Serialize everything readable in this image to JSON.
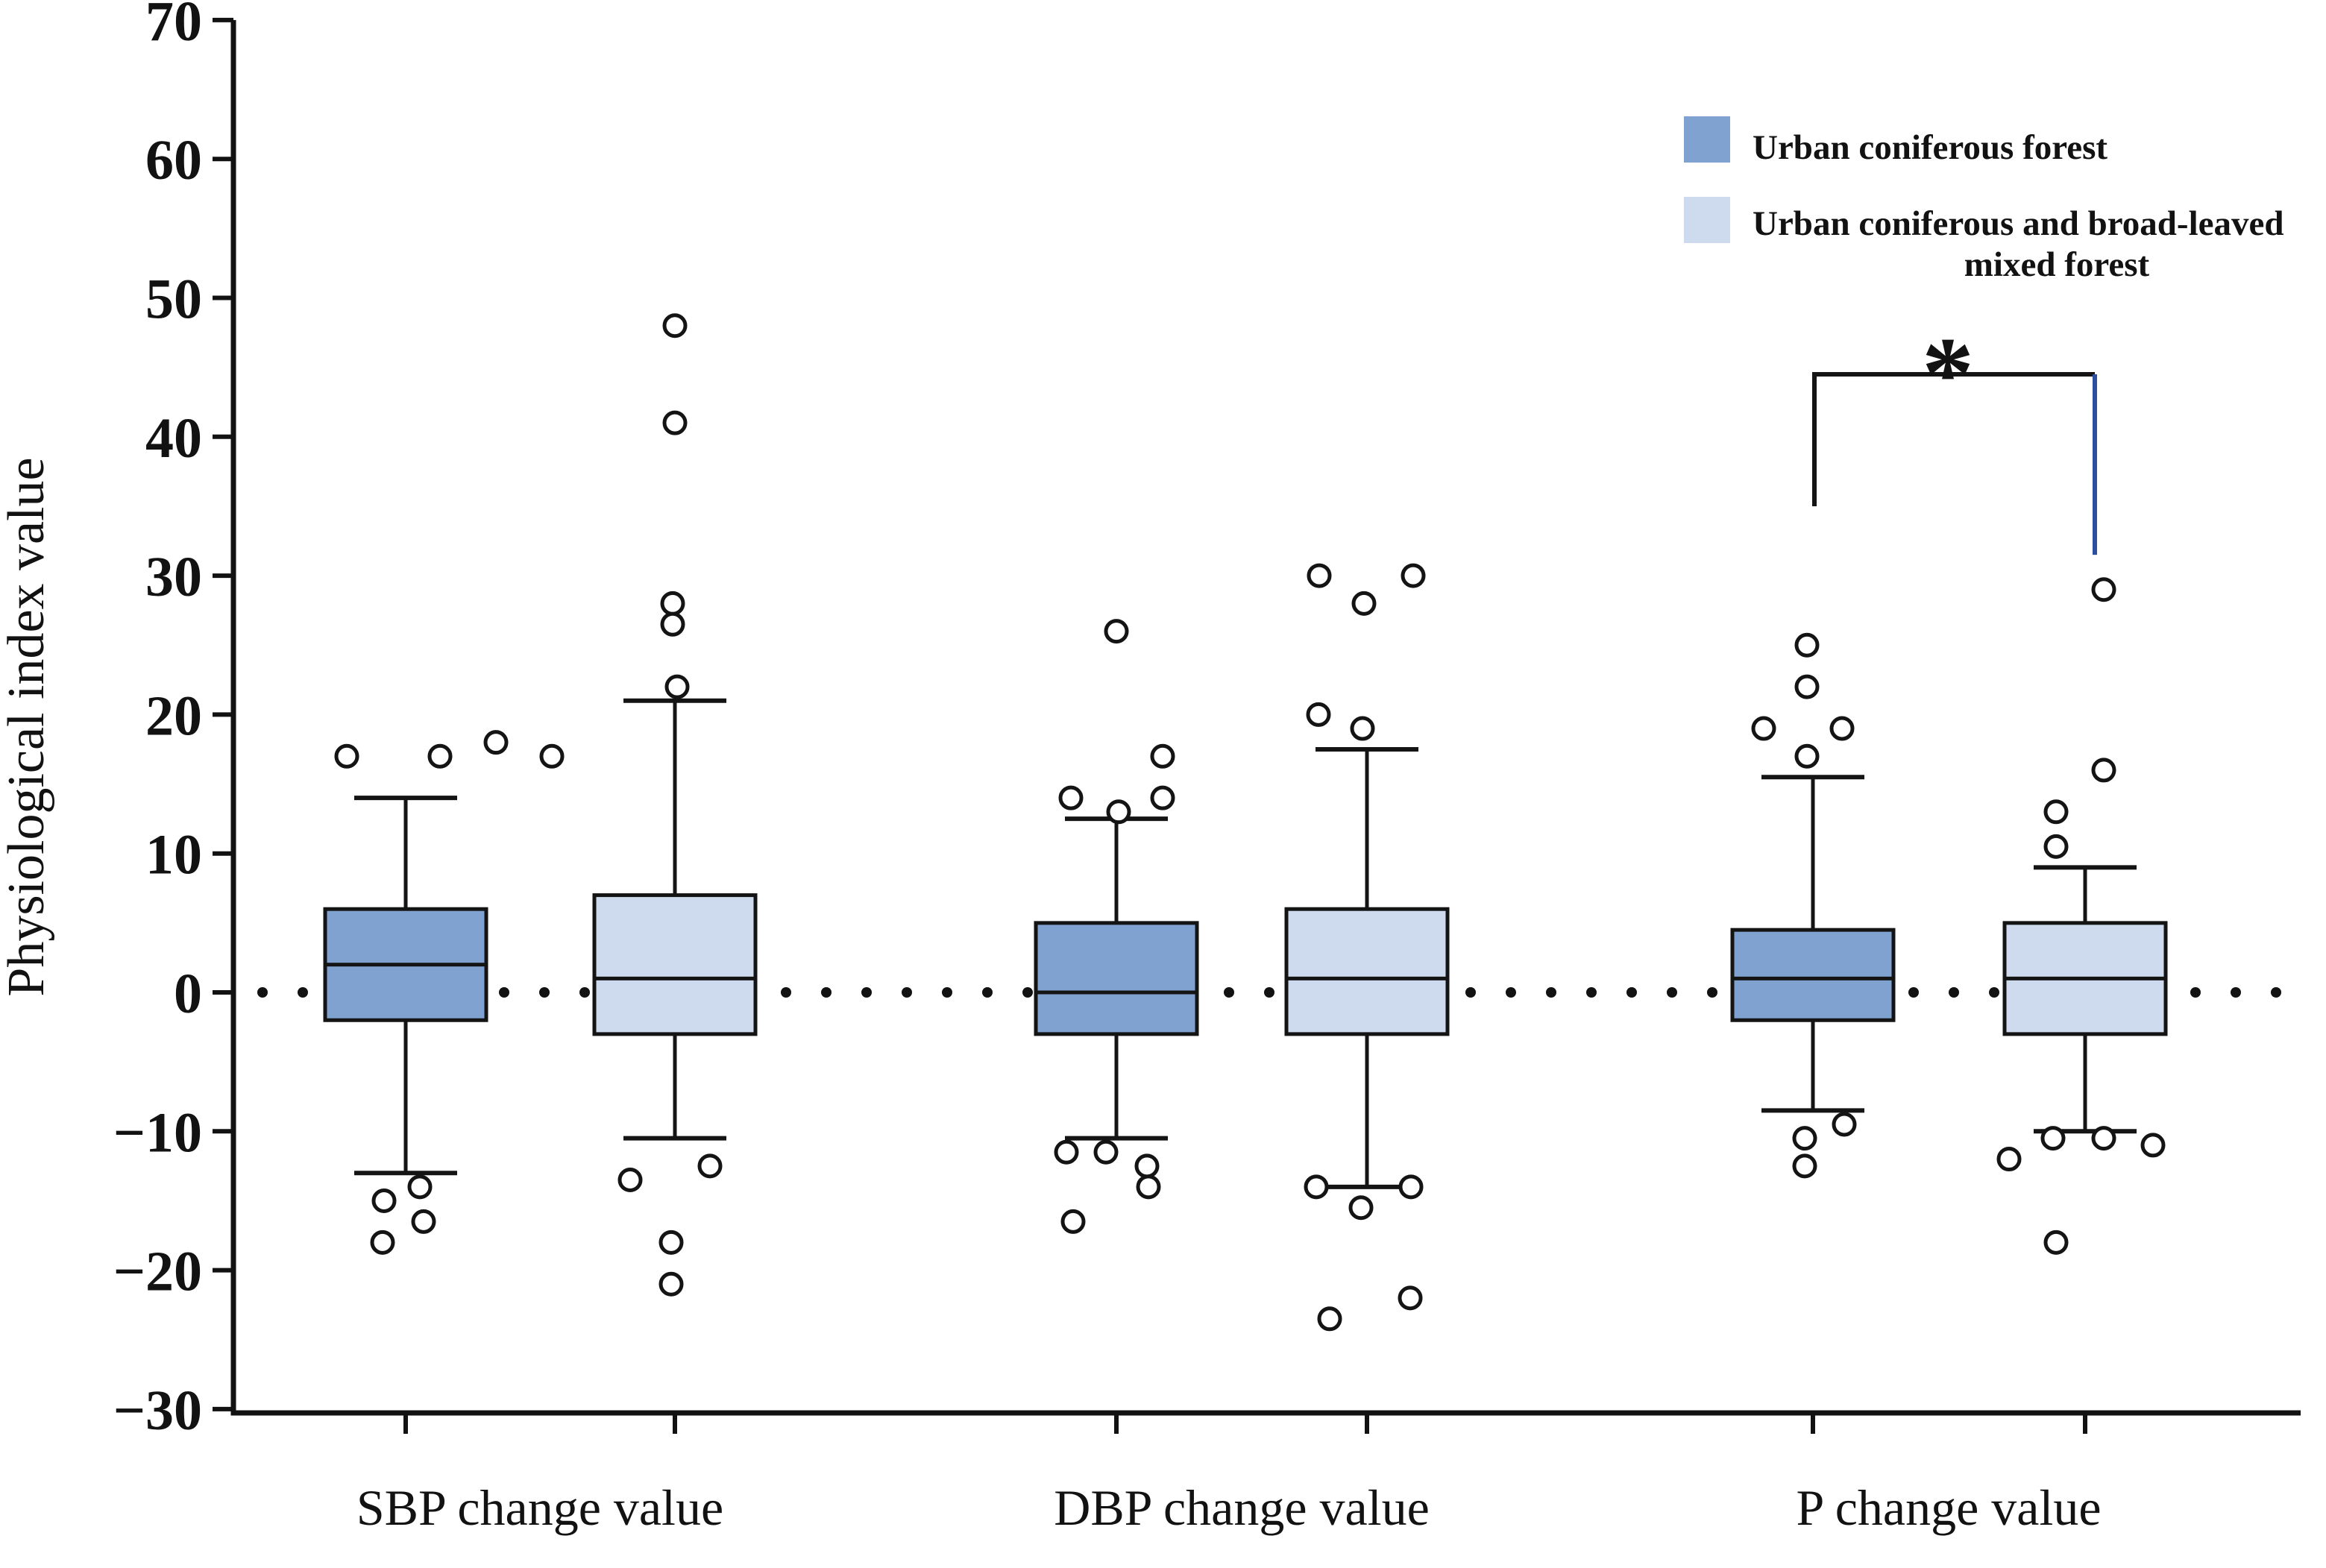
{
  "chart_data": {
    "type": "boxplot",
    "title": "",
    "ylabel": "Physiological index value",
    "xlabel": "",
    "ylim": [
      -30,
      70
    ],
    "ytick_step": 10,
    "ytick_labels": [
      "70",
      "60",
      "50",
      "40",
      "30",
      "20",
      "10",
      "0",
      "−10",
      "−20",
      "−30"
    ],
    "zero_line_style": "dotted",
    "grid": "off",
    "legend_position": "top-right",
    "categories": [
      "SBP change value",
      "DBP change value",
      "P change value"
    ],
    "outlier_tuple_format": "[value, x_jitter_px]",
    "series": [
      {
        "name": "Urban coniferous forest",
        "fill": "#80A2D1",
        "stroke": "#141414",
        "boxes": [
          {
            "category": "SBP change value",
            "whisker_low": -13,
            "q1": -2,
            "median": 2,
            "q3": 6,
            "whisker_high": 14,
            "outliers_above": [
              [
                17,
                -79
              ],
              [
                17,
                46
              ],
              [
                18,
                121
              ],
              [
                17,
                196
              ]
            ],
            "outliers_below": [
              [
                -14,
                19
              ],
              [
                -15,
                -29
              ],
              [
                -16.5,
                24
              ],
              [
                -18,
                -31
              ]
            ]
          },
          {
            "category": "DBP change value",
            "whisker_low": -10.5,
            "q1": -3,
            "median": 0,
            "q3": 5,
            "whisker_high": 12.5,
            "outliers_above": [
              [
                26,
                0
              ],
              [
                14,
                -61
              ],
              [
                13,
                3
              ],
              [
                17,
                62
              ],
              [
                14,
                62
              ]
            ],
            "outliers_below": [
              [
                -11.5,
                -67
              ],
              [
                -11.5,
                -14
              ],
              [
                -12.5,
                41
              ],
              [
                -14,
                43
              ],
              [
                -16.5,
                -58
              ]
            ]
          },
          {
            "category": "P change value",
            "whisker_low": -8.5,
            "q1": -2,
            "median": 1,
            "q3": 4.5,
            "whisker_high": 15.5,
            "outliers_above": [
              [
                25,
                -8
              ],
              [
                22,
                -8
              ],
              [
                19,
                -66
              ],
              [
                19,
                39
              ],
              [
                17,
                -8
              ]
            ],
            "outliers_below": [
              [
                -9.5,
                42
              ],
              [
                -10.5,
                -11
              ],
              [
                -12.5,
                -11
              ]
            ]
          }
        ]
      },
      {
        "name": "Urban coniferous and broad-leaved mixed forest",
        "name_line1": "Urban coniferous and broad-leaved",
        "name_line2": "mixed forest",
        "fill": "#CEDBEE",
        "stroke": "#141414",
        "boxes": [
          {
            "category": "SBP change value",
            "whisker_low": -10.5,
            "q1": -3,
            "median": 1,
            "q3": 7,
            "whisker_high": 21,
            "outliers_above": [
              [
                48,
                0
              ],
              [
                41,
                0
              ],
              [
                28,
                -3
              ],
              [
                26.5,
                -3
              ],
              [
                22,
                3
              ]
            ],
            "outliers_below": [
              [
                -12.5,
                47
              ],
              [
                -13.5,
                -60
              ],
              [
                -18,
                -5
              ],
              [
                -21,
                -5
              ]
            ]
          },
          {
            "category": "DBP change value",
            "whisker_low": -14,
            "q1": -3,
            "median": 1,
            "q3": 6,
            "whisker_high": 17.5,
            "outliers_above": [
              [
                30,
                -64
              ],
              [
                28,
                -4
              ],
              [
                30,
                62
              ],
              [
                20,
                -65
              ],
              [
                19,
                -6
              ]
            ],
            "outliers_below": [
              [
                -14,
                -68
              ],
              [
                -15.5,
                -8
              ],
              [
                -14,
                59
              ],
              [
                -23.5,
                -50
              ],
              [
                -22,
                58
              ]
            ]
          },
          {
            "category": "P change value",
            "whisker_low": -10,
            "q1": -3,
            "median": 1,
            "q3": 5,
            "whisker_high": 9,
            "outliers_above": [
              [
                29,
                25
              ],
              [
                16,
                25
              ],
              [
                13,
                -39
              ],
              [
                10.5,
                -39
              ]
            ],
            "outliers_below": [
              [
                -10.5,
                -43
              ],
              [
                -10.5,
                25
              ],
              [
                -11,
                91
              ],
              [
                -12,
                -102
              ],
              [
                -18,
                -39
              ]
            ]
          }
        ]
      }
    ],
    "annotation": {
      "symbol": "*",
      "category": "P change value",
      "compares": [
        "Urban coniferous forest",
        "Urban coniferous and broad-leaved mixed forest"
      ],
      "bracket": {
        "top_value": 44.5,
        "left_drop_value": 35,
        "right_drop_value": 31.5,
        "left_color": "#141414",
        "right_color": "#2D4DA1"
      }
    }
  }
}
